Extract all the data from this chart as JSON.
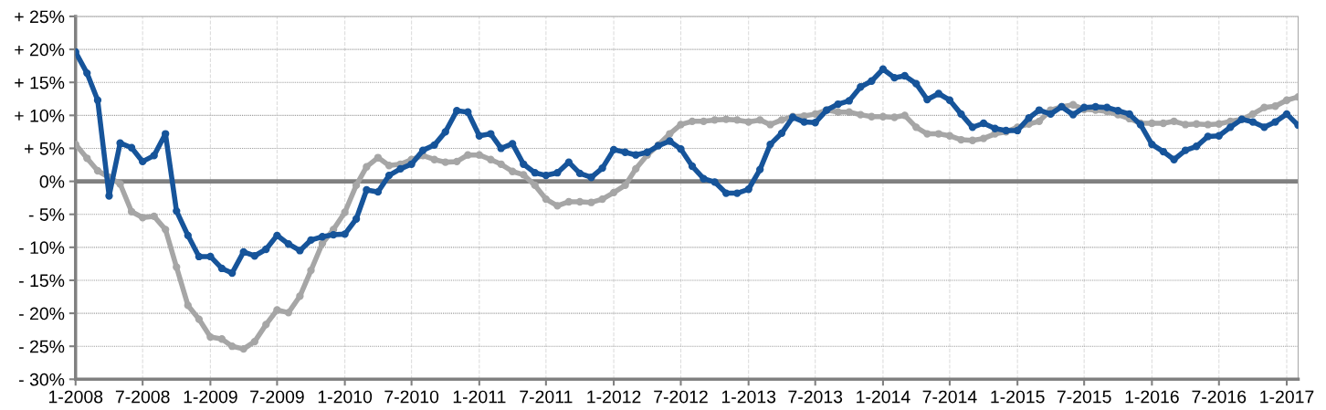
{
  "chart_data": {
    "type": "line",
    "x": [
      "2008-01",
      "2008-02",
      "2008-03",
      "2008-04",
      "2008-05",
      "2008-06",
      "2008-07",
      "2008-08",
      "2008-09",
      "2008-10",
      "2008-11",
      "2008-12",
      "2009-01",
      "2009-02",
      "2009-03",
      "2009-04",
      "2009-05",
      "2009-06",
      "2009-07",
      "2009-08",
      "2009-09",
      "2009-10",
      "2009-11",
      "2009-12",
      "2010-01",
      "2010-02",
      "2010-03",
      "2010-04",
      "2010-05",
      "2010-06",
      "2010-07",
      "2010-08",
      "2010-09",
      "2010-10",
      "2010-11",
      "2010-12",
      "2011-01",
      "2011-02",
      "2011-03",
      "2011-04",
      "2011-05",
      "2011-06",
      "2011-07",
      "2011-08",
      "2011-09",
      "2011-10",
      "2011-11",
      "2011-12",
      "2012-01",
      "2012-02",
      "2012-03",
      "2012-04",
      "2012-05",
      "2012-06",
      "2012-07",
      "2012-08",
      "2012-09",
      "2012-10",
      "2012-11",
      "2012-12",
      "2013-01",
      "2013-02",
      "2013-03",
      "2013-04",
      "2013-05",
      "2013-06",
      "2013-07",
      "2013-08",
      "2013-09",
      "2013-10",
      "2013-11",
      "2013-12",
      "2014-01",
      "2014-02",
      "2014-03",
      "2014-04",
      "2014-05",
      "2014-06",
      "2014-07",
      "2014-08",
      "2014-09",
      "2014-10",
      "2014-11",
      "2014-12",
      "2015-01",
      "2015-02",
      "2015-03",
      "2015-04",
      "2015-05",
      "2015-06",
      "2015-07",
      "2015-08",
      "2015-09",
      "2015-10",
      "2015-11",
      "2015-12",
      "2016-01",
      "2016-02",
      "2016-03",
      "2016-04",
      "2016-05",
      "2016-06",
      "2016-07",
      "2016-08",
      "2016-09",
      "2016-10",
      "2016-11",
      "2016-12",
      "2017-01",
      "2017-02"
    ],
    "series": [
      {
        "color": "#a6a6a6",
        "values": [
          5.6,
          3.5,
          1.6,
          0.6,
          -0.4,
          -4.6,
          -5.5,
          -5.3,
          -7.3,
          -13.0,
          -18.8,
          -20.9,
          -23.6,
          -23.9,
          -25.0,
          -25.4,
          -24.3,
          -21.7,
          -19.5,
          -19.9,
          -17.4,
          -13.5,
          -9.4,
          -7.3,
          -4.7,
          -0.6,
          2.2,
          3.6,
          2.4,
          2.6,
          3.3,
          3.9,
          3.3,
          2.9,
          3.0,
          4.0,
          4.0,
          3.3,
          2.6,
          1.5,
          1.0,
          -0.6,
          -2.7,
          -3.7,
          -3.1,
          -3.1,
          -3.2,
          -2.7,
          -1.7,
          -0.6,
          1.9,
          4.0,
          5.5,
          7.2,
          8.6,
          9.1,
          9.1,
          9.3,
          9.4,
          9.3,
          9.0,
          9.3,
          8.6,
          9.3,
          9.8,
          9.9,
          10.2,
          10.8,
          10.5,
          10.5,
          10.1,
          9.8,
          9.8,
          9.7,
          10.0,
          8.2,
          7.2,
          7.2,
          6.9,
          6.3,
          6.2,
          6.5,
          7.2,
          7.5,
          8.2,
          8.7,
          9.1,
          10.8,
          11.3,
          11.6,
          10.9,
          10.8,
          10.6,
          10.1,
          9.5,
          8.8,
          8.8,
          8.8,
          9.1,
          8.6,
          8.7,
          8.6,
          8.7,
          9.1,
          9.4,
          10.2,
          11.2,
          11.4,
          12.3,
          12.8
        ]
      },
      {
        "color": "#16549a",
        "values": [
          19.6,
          16.4,
          12.3,
          -2.2,
          5.8,
          5.1,
          3.0,
          3.9,
          7.2,
          -4.5,
          -8.2,
          -11.4,
          -11.4,
          -13.2,
          -13.9,
          -10.7,
          -11.3,
          -10.3,
          -8.2,
          -9.5,
          -10.5,
          -8.9,
          -8.4,
          -8.1,
          -8.0,
          -5.7,
          -1.3,
          -1.6,
          0.9,
          1.9,
          2.6,
          4.7,
          5.5,
          7.5,
          10.7,
          10.5,
          6.9,
          7.2,
          5.0,
          5.7,
          2.6,
          1.3,
          0.9,
          1.3,
          2.9,
          1.2,
          0.6,
          2.0,
          4.8,
          4.4,
          4.0,
          4.4,
          5.4,
          6.1,
          4.9,
          2.3,
          0.4,
          -0.1,
          -1.8,
          -1.8,
          -1.2,
          1.8,
          5.6,
          7.3,
          9.7,
          9.0,
          8.9,
          10.8,
          11.7,
          12.2,
          14.3,
          15.2,
          17.0,
          15.7,
          16.0,
          14.8,
          12.4,
          13.3,
          12.3,
          10.2,
          8.2,
          8.8,
          8.0,
          7.7,
          7.7,
          9.6,
          10.8,
          10.2,
          11.3,
          10.1,
          11.2,
          11.3,
          11.2,
          10.7,
          10.2,
          8.6,
          5.6,
          4.5,
          3.3,
          4.7,
          5.3,
          6.8,
          6.9,
          8.2,
          9.4,
          9.0,
          8.2,
          9.0,
          10.2,
          8.5
        ]
      }
    ],
    "xlim": [
      "2008-01",
      "2017-02"
    ],
    "xticks": [
      {
        "value": "2008-01",
        "label": "1-2008"
      },
      {
        "value": "2008-07",
        "label": "7-2008"
      },
      {
        "value": "2009-01",
        "label": "1-2009"
      },
      {
        "value": "2009-07",
        "label": "7-2009"
      },
      {
        "value": "2010-01",
        "label": "1-2010"
      },
      {
        "value": "2010-07",
        "label": "7-2010"
      },
      {
        "value": "2011-01",
        "label": "1-2011"
      },
      {
        "value": "2011-07",
        "label": "7-2011"
      },
      {
        "value": "2012-01",
        "label": "1-2012"
      },
      {
        "value": "2012-07",
        "label": "7-2012"
      },
      {
        "value": "2013-01",
        "label": "1-2013"
      },
      {
        "value": "2013-07",
        "label": "7-2013"
      },
      {
        "value": "2014-01",
        "label": "1-2014"
      },
      {
        "value": "2014-07",
        "label": "7-2014"
      },
      {
        "value": "2015-01",
        "label": "1-2015"
      },
      {
        "value": "2015-07",
        "label": "7-2015"
      },
      {
        "value": "2016-01",
        "label": "1-2016"
      },
      {
        "value": "2016-07",
        "label": "7-2016"
      },
      {
        "value": "2017-01",
        "label": "1-2017"
      }
    ],
    "ylim": [
      -30,
      25
    ],
    "yticks": [
      {
        "value": 25,
        "label": "+ 25%"
      },
      {
        "value": 20,
        "label": "+ 20%"
      },
      {
        "value": 15,
        "label": "+ 15%"
      },
      {
        "value": 10,
        "label": "+ 10%"
      },
      {
        "value": 5,
        "label": "+ 5%"
      },
      {
        "value": 0,
        "label": "0%"
      },
      {
        "value": -5,
        "label": "- 5%"
      },
      {
        "value": -10,
        "label": "- 10%"
      },
      {
        "value": -15,
        "label": "- 15%"
      },
      {
        "value": -20,
        "label": "- 20%"
      },
      {
        "value": -25,
        "label": "- 25%"
      },
      {
        "value": -30,
        "label": "- 30%"
      }
    ],
    "ref_lines": [
      {
        "axis": "y",
        "value": 0,
        "color": "#808080"
      }
    ],
    "grid": true,
    "marker": "circle",
    "line_style": "solid"
  }
}
